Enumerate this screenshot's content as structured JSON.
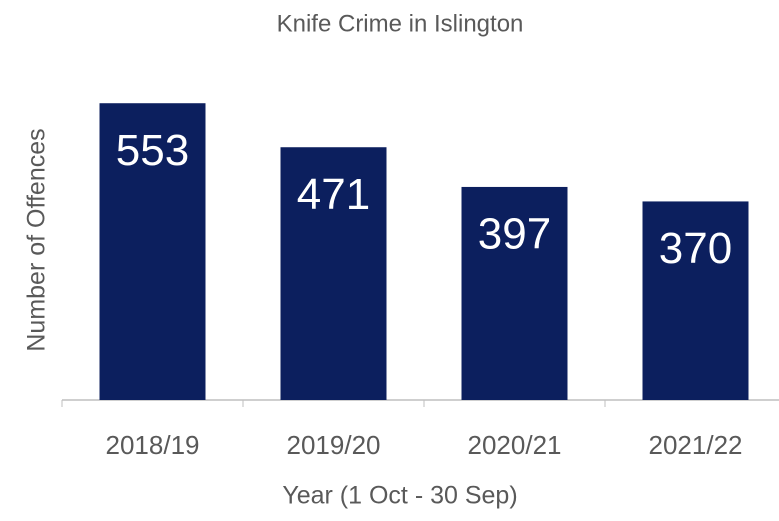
{
  "chart_data": {
    "type": "bar",
    "title": "Knife Crime in Islington",
    "x_label": "Year (1 Oct - 30 Sep)",
    "y_label": "Number of Offences",
    "categories": [
      "2018/19",
      "2019/20",
      "2020/21",
      "2021/22"
    ],
    "values": [
      553,
      471,
      397,
      370
    ],
    "color": "#0c1f5e",
    "ylim": [
      0,
      600
    ],
    "data_labels": true
  }
}
